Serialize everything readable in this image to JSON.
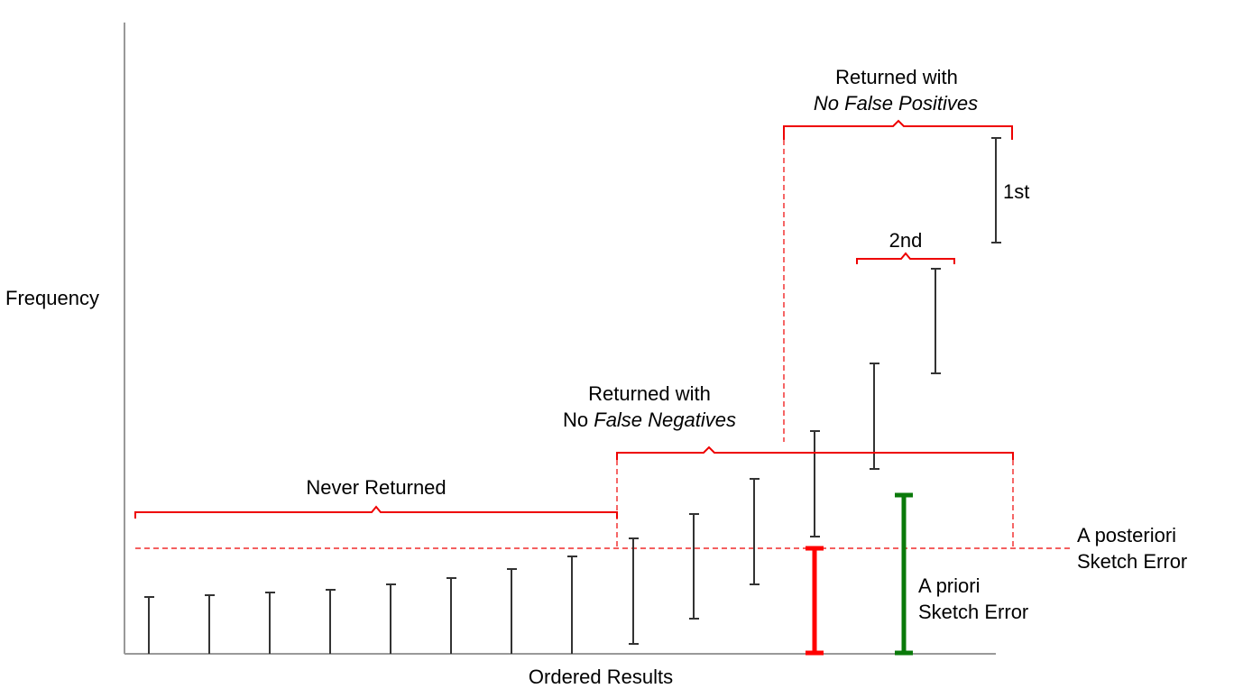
{
  "axes": {
    "y_label": "Frequency",
    "x_label": "Ordered Results"
  },
  "annotations": {
    "never_returned": "Never Returned",
    "no_false_negatives_line1": "Returned with",
    "no_false_negatives_prefix": "No ",
    "no_false_negatives_italic": "False Negatives",
    "no_false_positives_line1": "Returned with",
    "no_false_positives_line2": "No False Positives",
    "first": "1st",
    "second": "2nd",
    "a_posteriori_line1": "A posteriori",
    "a_posteriori_line2": "Sketch Error",
    "a_priori_line1": "A priori",
    "a_priori_line2": "Sketch Error"
  },
  "colors": {
    "axis": "#999999",
    "error_bar": "#333333",
    "bracket": "#ee0000",
    "a_posteriori_bar": "#ff0000",
    "a_priori_bar": "#0a7a0a"
  }
}
